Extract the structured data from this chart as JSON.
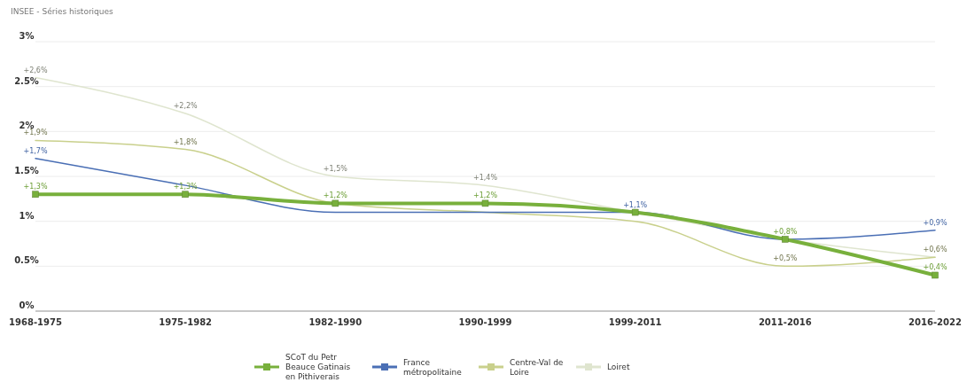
{
  "chart_data": {
    "type": "line",
    "annotations": [
      "INSEE - Séries historiques"
    ],
    "categories": [
      "1968-1975",
      "1975-1982",
      "1982-1990",
      "1990-1999",
      "1999-2011",
      "2011-2016",
      "2016-2022"
    ],
    "ylim": [
      0,
      3
    ],
    "yticks": [
      {
        "value": 0,
        "label": "0%"
      },
      {
        "value": 0.5,
        "label": "0.5%"
      },
      {
        "value": 1,
        "label": "1%"
      },
      {
        "value": 1.5,
        "label": "1.5%"
      },
      {
        "value": 2,
        "label": "2%"
      },
      {
        "value": 2.5,
        "label": "2.5%"
      },
      {
        "value": 3,
        "label": "3%"
      }
    ],
    "grid": "y",
    "legend": "bottom",
    "data_labels": true,
    "series": [
      {
        "name": "Loiret",
        "color": "#dfe5cf",
        "values": [
          2.6,
          2.2,
          1.5,
          1.4,
          1.1,
          0.8,
          0.6
        ],
        "value_labels": [
          "+2,6%",
          "+2,2%",
          "+1,5%",
          "+1,4%",
          null,
          null,
          null
        ],
        "marker": "none"
      },
      {
        "name": "Centre-Val de Loire",
        "color": "#c9d08c",
        "values": [
          1.9,
          1.8,
          1.2,
          1.1,
          1.0,
          0.5,
          0.6
        ],
        "value_labels": [
          "+1,9%",
          "+1,8%",
          null,
          null,
          null,
          "+0,5%",
          "+0,6%"
        ],
        "marker": "none"
      },
      {
        "name": "France métropolitaine",
        "color": "#4a6fb5",
        "values": [
          1.7,
          1.4,
          1.1,
          1.1,
          1.1,
          0.8,
          0.9
        ],
        "value_labels": [
          "+1,7%",
          null,
          null,
          null,
          "+1,1%",
          null,
          "+0,9%"
        ],
        "marker": "none"
      },
      {
        "name": "SCoT du Petr Beauce Gatinais en Pithiverais",
        "color": "#78b03c",
        "values": [
          1.3,
          1.3,
          1.2,
          1.2,
          1.1,
          0.8,
          0.4
        ],
        "value_labels": [
          "+1,3%",
          "+1,3%",
          "+1,2%",
          "+1,2%",
          null,
          "+0,8%",
          "+0,4%"
        ],
        "marker": "square"
      }
    ]
  }
}
